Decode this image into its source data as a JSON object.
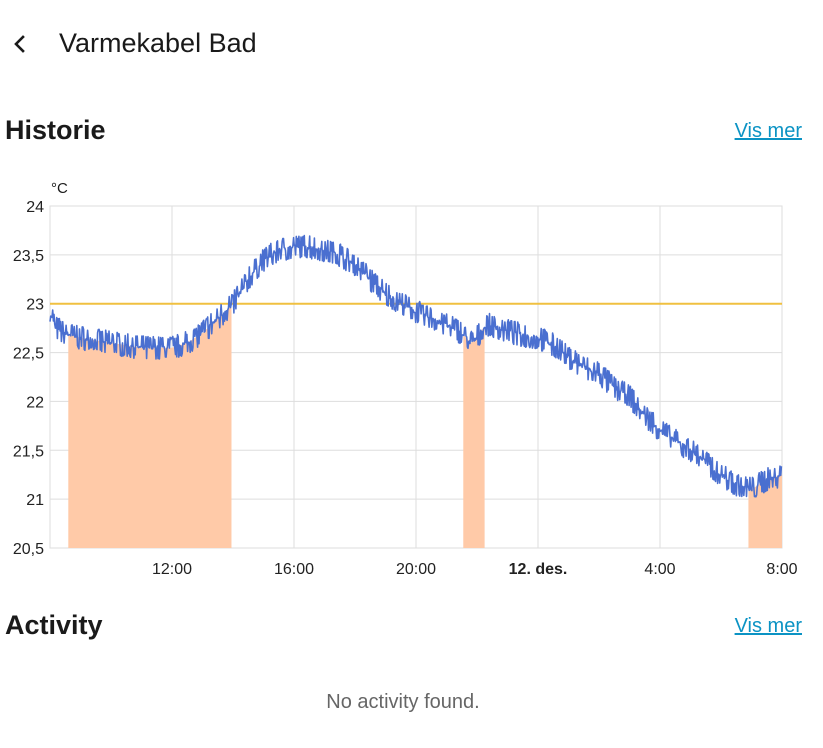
{
  "header": {
    "title": "Varmekabel Bad",
    "back_icon": "chevron-left-icon"
  },
  "history": {
    "title": "Historie",
    "more_label": "Vis mer"
  },
  "activity": {
    "title": "Activity",
    "more_label": "Vis mer",
    "empty_text": "No activity found."
  },
  "colors": {
    "temperature": "#4a6fd0",
    "target": "#f0c040",
    "heating": "#ffcaa8",
    "link": "#0b93c4",
    "grid": "#dddddd"
  },
  "chart_data": {
    "type": "line",
    "unit_label": "°C",
    "ylim": [
      20.5,
      24
    ],
    "yticks": [
      {
        "value": 24,
        "label": "24"
      },
      {
        "value": 23.5,
        "label": "23,5"
      },
      {
        "value": 23,
        "label": "23"
      },
      {
        "value": 22.5,
        "label": "22,5"
      },
      {
        "value": 22,
        "label": "22"
      },
      {
        "value": 21.5,
        "label": "21,5"
      },
      {
        "value": 21,
        "label": "21"
      },
      {
        "value": 20.5,
        "label": "20,5"
      }
    ],
    "xlim": [
      8,
      32
    ],
    "xticks": [
      {
        "value": 12,
        "label": "12:00",
        "bold": false
      },
      {
        "value": 16,
        "label": "16:00",
        "bold": false
      },
      {
        "value": 20,
        "label": "20:00",
        "bold": false
      },
      {
        "value": 24,
        "label": "12. des.",
        "bold": true
      },
      {
        "value": 28,
        "label": "4:00",
        "bold": false
      },
      {
        "value": 32,
        "label": "8:00",
        "bold": false
      }
    ],
    "grid": true,
    "series": [
      {
        "kind": "temperature",
        "points": [
          [
            8.0,
            22.9
          ],
          [
            8.2,
            22.75
          ],
          [
            8.5,
            22.7
          ],
          [
            9.0,
            22.65
          ],
          [
            10.0,
            22.6
          ],
          [
            11.0,
            22.55
          ],
          [
            12.0,
            22.55
          ],
          [
            12.5,
            22.6
          ],
          [
            13.0,
            22.7
          ],
          [
            13.5,
            22.85
          ],
          [
            14.0,
            23.0
          ],
          [
            14.5,
            23.25
          ],
          [
            15.0,
            23.45
          ],
          [
            15.5,
            23.55
          ],
          [
            16.0,
            23.58
          ],
          [
            16.5,
            23.58
          ],
          [
            17.0,
            23.55
          ],
          [
            17.5,
            23.5
          ],
          [
            18.0,
            23.4
          ],
          [
            18.5,
            23.25
          ],
          [
            19.0,
            23.1
          ],
          [
            19.5,
            23.0
          ],
          [
            20.0,
            22.92
          ],
          [
            20.5,
            22.85
          ],
          [
            21.0,
            22.78
          ],
          [
            21.5,
            22.7
          ],
          [
            21.8,
            22.6
          ],
          [
            22.0,
            22.65
          ],
          [
            22.2,
            22.75
          ],
          [
            22.4,
            22.78
          ],
          [
            23.0,
            22.72
          ],
          [
            23.5,
            22.68
          ],
          [
            24.0,
            22.65
          ],
          [
            24.5,
            22.58
          ],
          [
            25.0,
            22.45
          ],
          [
            25.5,
            22.35
          ],
          [
            26.0,
            22.28
          ],
          [
            26.5,
            22.15
          ],
          [
            27.0,
            22.05
          ],
          [
            27.5,
            21.85
          ],
          [
            28.0,
            21.7
          ],
          [
            28.5,
            21.6
          ],
          [
            29.0,
            21.5
          ],
          [
            29.5,
            21.38
          ],
          [
            30.0,
            21.25
          ],
          [
            30.5,
            21.15
          ],
          [
            31.0,
            21.1
          ],
          [
            31.5,
            21.2
          ],
          [
            32.0,
            21.25
          ]
        ]
      },
      {
        "kind": "target",
        "points": [
          [
            8.0,
            23.0
          ],
          [
            32.0,
            23.0
          ]
        ]
      }
    ],
    "heating_periods": [
      [
        8.6,
        13.95
      ],
      [
        21.55,
        22.25
      ],
      [
        30.9,
        32.0
      ]
    ]
  }
}
